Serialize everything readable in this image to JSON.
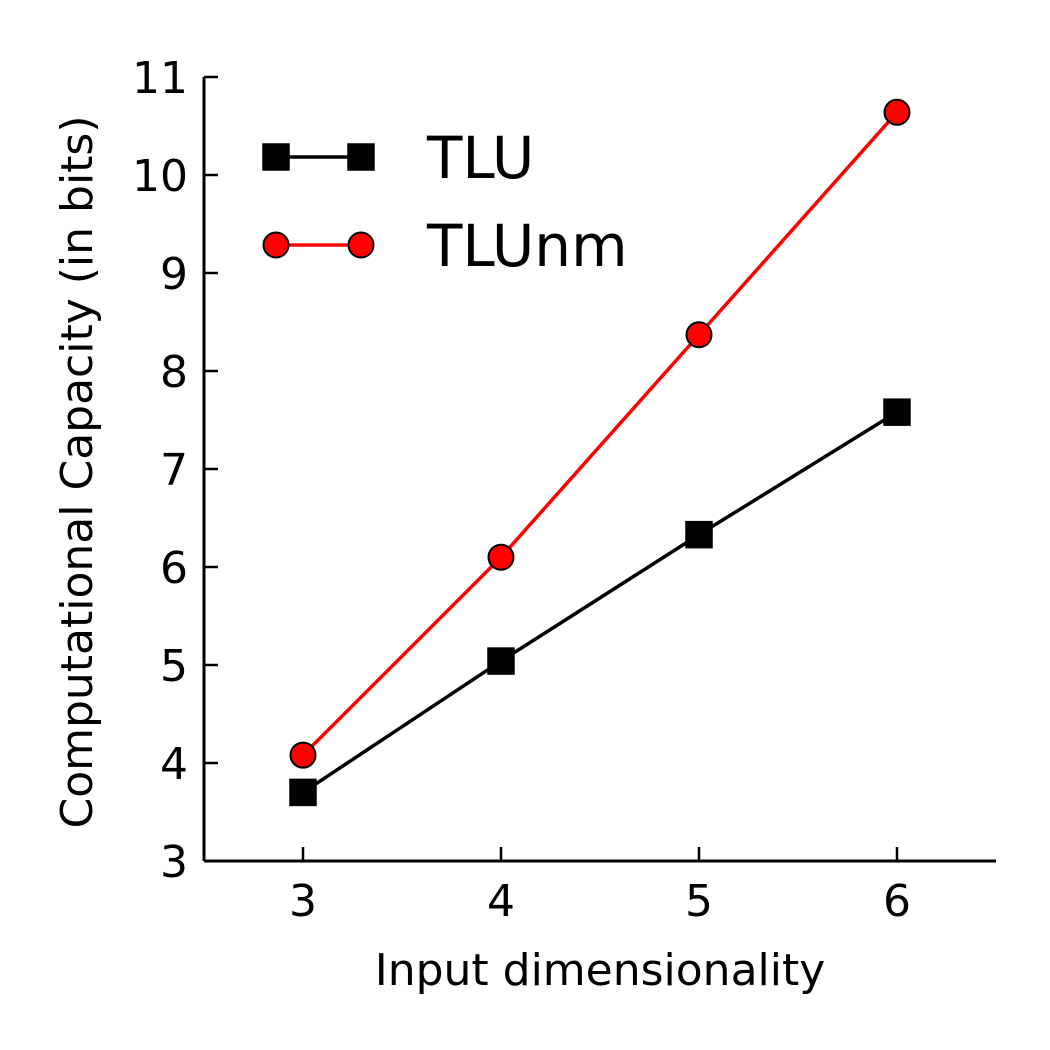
{
  "chart_data": {
    "type": "line",
    "title": "",
    "xlabel": "Input dimensionality",
    "ylabel": "Computational Capacity (in bits)",
    "x": [
      3,
      4,
      5,
      6
    ],
    "xlim": [
      2.5,
      6.5
    ],
    "ylim": [
      3,
      11
    ],
    "xticks": [
      "3",
      "4",
      "5",
      "6"
    ],
    "yticks": [
      "3",
      "4",
      "5",
      "6",
      "7",
      "8",
      "9",
      "10",
      "11"
    ],
    "grid": false,
    "legend_position": "top-left",
    "series": [
      {
        "name": "TLU",
        "values": [
          3.7,
          5.04,
          6.33,
          7.58
        ],
        "color": "#000000",
        "marker": "square"
      },
      {
        "name": "TLUnm",
        "values": [
          4.08,
          6.1,
          8.37,
          10.64
        ],
        "color": "#ff0000",
        "marker": "circle"
      }
    ]
  }
}
